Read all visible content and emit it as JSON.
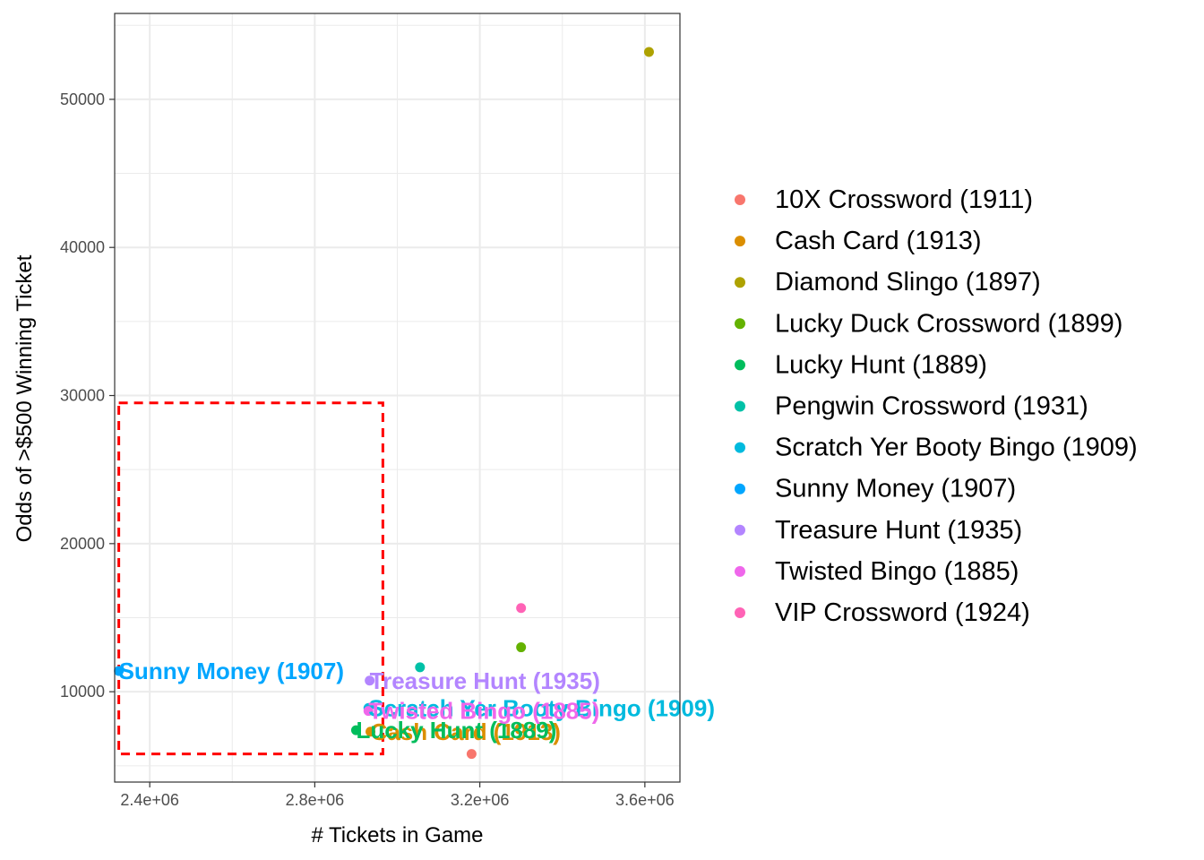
{
  "chart_data": {
    "type": "scatter",
    "xlabel": "# Tickets in Game",
    "ylabel": "Odds of >$500 Winning Ticket",
    "x_ticks": [
      2400000,
      2800000,
      3200000,
      3600000
    ],
    "x_tick_labels": [
      "2.4e+06",
      "2.8e+06",
      "3.2e+06",
      "3.6e+06"
    ],
    "y_ticks": [
      10000,
      20000,
      30000,
      40000,
      50000
    ],
    "y_tick_labels": [
      "10000",
      "20000",
      "30000",
      "40000",
      "50000"
    ],
    "xlim": [
      2315000,
      3685000
    ],
    "ylim": [
      3900,
      55800
    ],
    "grid": true,
    "legend_position": "right",
    "series": [
      {
        "name": "10X Crossword (1911)",
        "color": "#F8766D",
        "x": 3180000,
        "y": 5800,
        "label": ""
      },
      {
        "name": "Cash Card (1913)",
        "color": "#DB8E00",
        "x": 2935000,
        "y": 7300,
        "label": "Cash Card (1913)"
      },
      {
        "name": "Diamond Slingo (1897)",
        "color": "#AEA200",
        "x": 3610000,
        "y": 53200,
        "label": ""
      },
      {
        "name": "Lucky Duck Crossword (1899)",
        "color": "#64B200",
        "x": 3300000,
        "y": 13000,
        "label": ""
      },
      {
        "name": "Lucky Hunt (1889)",
        "color": "#00BD5C",
        "x": 2900000,
        "y": 7400,
        "label": "Lucky Hunt (1889)"
      },
      {
        "name": "Pengwin Crossword (1931)",
        "color": "#00C1A7",
        "x": 3055000,
        "y": 11650,
        "label": ""
      },
      {
        "name": "Scratch Yer Booty Bingo (1909)",
        "color": "#00BADE",
        "x": 2930000,
        "y": 8900,
        "label": "Scratch Yer Booty Bingo (1909)"
      },
      {
        "name": "Sunny Money (1907)",
        "color": "#00A6FF",
        "x": 2325000,
        "y": 11400,
        "label": "Sunny Money (1907)"
      },
      {
        "name": "Treasure Hunt (1935)",
        "color": "#B385FF",
        "x": 2933000,
        "y": 10750,
        "label": "Treasure Hunt (1935)"
      },
      {
        "name": "Twisted Bingo (1885)",
        "color": "#EF67EB",
        "x": 2930000,
        "y": 8700,
        "label": "Twisted Bingo (1885)"
      },
      {
        "name": "VIP Crossword (1924)",
        "color": "#FF63B6",
        "x": 3300000,
        "y": 15650,
        "label": ""
      }
    ],
    "highlight_box": {
      "x0": 2325000,
      "x1": 2965000,
      "y0": 5800,
      "y1": 29500,
      "color": "#FF0000",
      "style": "dashed"
    }
  }
}
